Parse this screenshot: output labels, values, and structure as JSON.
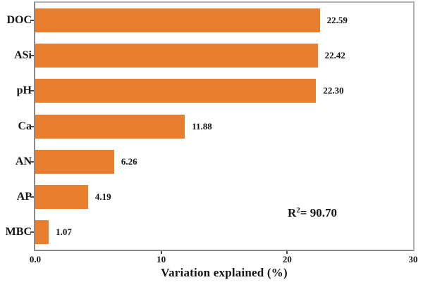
{
  "chart_data": {
    "type": "bar",
    "orientation": "horizontal",
    "title": "",
    "categories": [
      "DOC",
      "ASi",
      "pH",
      "Ca",
      "AN",
      "AP",
      "MBC"
    ],
    "values": [
      22.59,
      22.42,
      22.3,
      11.88,
      6.26,
      4.19,
      1.07
    ],
    "value_labels": [
      "22.59",
      "22.42",
      "22.30",
      "11.88",
      "6.26",
      "4.19",
      "1.07"
    ],
    "xlabel": "Variation explained (%)",
    "ylabel": "",
    "xlim": [
      0,
      30
    ],
    "xticks": [
      {
        "value": 0,
        "label": "0.0"
      },
      {
        "value": 10,
        "label": "10"
      },
      {
        "value": 20,
        "label": "20"
      },
      {
        "value": 30,
        "label": "30"
      }
    ],
    "grid": false,
    "legend": false,
    "annotation": {
      "base": "R",
      "sup": "2",
      "rest": "= 90.70"
    }
  },
  "colors": {
    "bar": "#E87E2E",
    "frame": "#b2b2b2",
    "axis": "#8a8a8a",
    "text": "#141414"
  }
}
